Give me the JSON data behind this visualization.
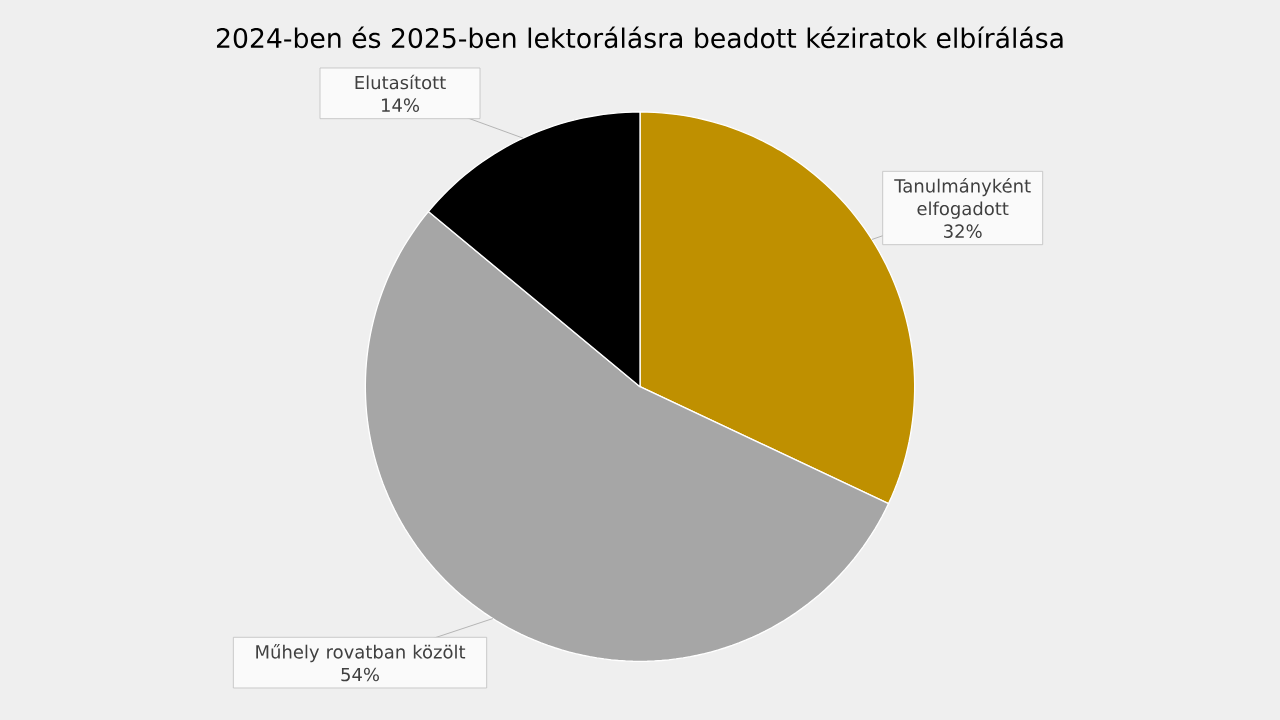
{
  "chart_data": {
    "type": "pie",
    "title": "2024-ben és 2025-ben lektorálásra beadott kéziratok elbírálása",
    "categories": [
      "Tanulmányként elfogadott",
      "Műhely rovatban közölt",
      "Elutasított"
    ],
    "values": [
      32,
      54,
      14
    ],
    "colors": [
      "#bf9000",
      "#a6a6a6",
      "#000000"
    ],
    "value_labels": [
      "32%",
      "54%",
      "14%"
    ]
  }
}
